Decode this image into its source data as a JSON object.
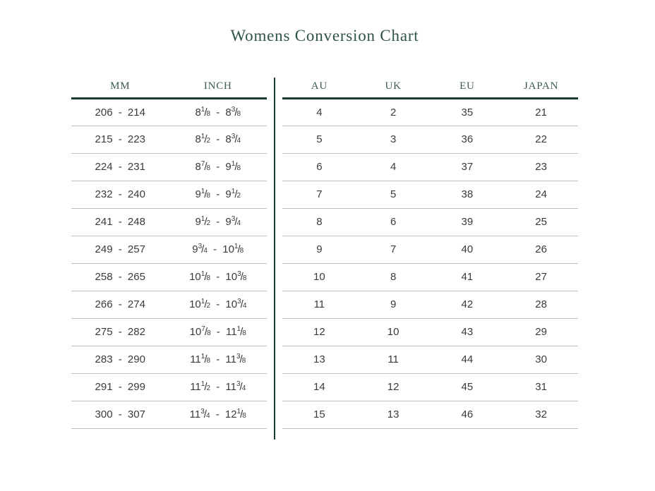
{
  "title": "Womens Conversion Chart",
  "colors": {
    "accent": "#1c3b34",
    "title_text": "#2f524b",
    "header_text": "#3d5a53",
    "row_text": "#3a3a3a",
    "separator": "#bfbfbf"
  },
  "left_table": {
    "headers": [
      "MM",
      "INCH"
    ],
    "rows": [
      {
        "mm": "206 - 214",
        "inch": "8 1/8 - 8 3/8"
      },
      {
        "mm": "215 - 223",
        "inch": "8 1/2 - 8 3/4"
      },
      {
        "mm": "224 - 231",
        "inch": "8 7/8 - 9 1/8"
      },
      {
        "mm": "232 - 240",
        "inch": "9 1/8 - 9 1/2"
      },
      {
        "mm": "241 - 248",
        "inch": "9 1/2 - 9 3/4"
      },
      {
        "mm": "249 - 257",
        "inch": "9 3/4 - 10 1/8"
      },
      {
        "mm": "258 - 265",
        "inch": "10 1/8 - 10 3/8"
      },
      {
        "mm": "266 - 274",
        "inch": "10 1/2 - 10 3/4"
      },
      {
        "mm": "275 - 282",
        "inch": "10 7/8 - 11 1/8"
      },
      {
        "mm": "283 - 290",
        "inch": "11 1/8 - 11 3/8"
      },
      {
        "mm": "291 - 299",
        "inch": "11 1/2 - 11 3/4"
      },
      {
        "mm": "300 - 307",
        "inch": "11 3/4 - 12 1/8"
      }
    ]
  },
  "right_table": {
    "headers": [
      "AU",
      "UK",
      "EU",
      "JAPAN"
    ],
    "rows": [
      [
        "4",
        "2",
        "35",
        "21"
      ],
      [
        "5",
        "3",
        "36",
        "22"
      ],
      [
        "6",
        "4",
        "37",
        "23"
      ],
      [
        "7",
        "5",
        "38",
        "24"
      ],
      [
        "8",
        "6",
        "39",
        "25"
      ],
      [
        "9",
        "7",
        "40",
        "26"
      ],
      [
        "10",
        "8",
        "41",
        "27"
      ],
      [
        "11",
        "9",
        "42",
        "28"
      ],
      [
        "12",
        "10",
        "43",
        "29"
      ],
      [
        "13",
        "11",
        "44",
        "30"
      ],
      [
        "14",
        "12",
        "45",
        "31"
      ],
      [
        "15",
        "13",
        "46",
        "32"
      ]
    ]
  }
}
